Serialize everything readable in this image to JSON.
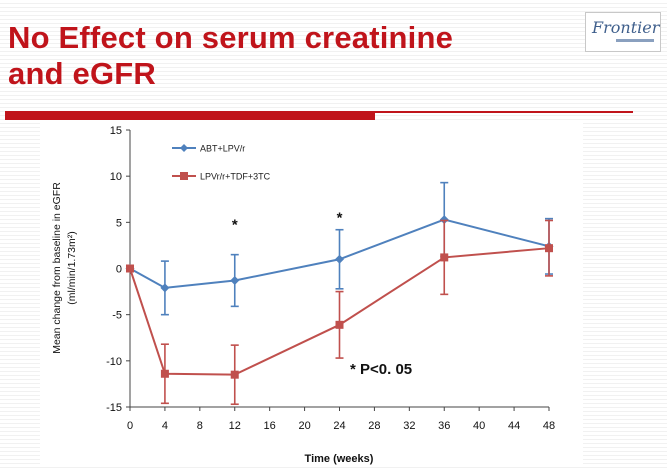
{
  "slide": {
    "title_line1": "No Effect on serum creatinine",
    "title_line2": "and eGFR",
    "logo_text": "Frontier"
  },
  "colors": {
    "title": "#c0141b",
    "series_blue": "#4f81bd",
    "series_red": "#c0504d"
  },
  "chart_data": {
    "type": "line",
    "title": "",
    "xlabel": "Time (weeks)",
    "ylabel": "Mean change from baseline in eGFR",
    "ylabel_unit": "(ml/min/1.73m²)",
    "xlim": [
      0,
      48
    ],
    "ylim": [
      -15,
      15
    ],
    "x_ticks": [
      0,
      4,
      8,
      12,
      16,
      20,
      24,
      28,
      32,
      36,
      40,
      44,
      48
    ],
    "y_ticks": [
      15,
      10,
      5,
      0,
      -5,
      -10,
      -15
    ],
    "grid": false,
    "legend_position": "top-left",
    "series": [
      {
        "name": "ABT+LPV/r",
        "marker": "diamond",
        "x": [
          0,
          4,
          12,
          24,
          36,
          48
        ],
        "y": [
          0,
          -2.1,
          -1.3,
          1.0,
          5.3,
          2.4
        ],
        "error": [
          0,
          2.9,
          2.8,
          3.2,
          4.0,
          3.0
        ]
      },
      {
        "name": "LPVr/r+TDF+3TC",
        "marker": "square",
        "x": [
          0,
          4,
          12,
          24,
          36,
          48
        ],
        "y": [
          0,
          -11.4,
          -11.5,
          -6.1,
          1.2,
          2.2
        ],
        "error": [
          0,
          3.2,
          3.2,
          3.6,
          4.0,
          3.0
        ]
      }
    ],
    "significance_weeks": [
      12,
      24
    ],
    "significance_marker": "*",
    "annotation": "* P<0. 05"
  }
}
